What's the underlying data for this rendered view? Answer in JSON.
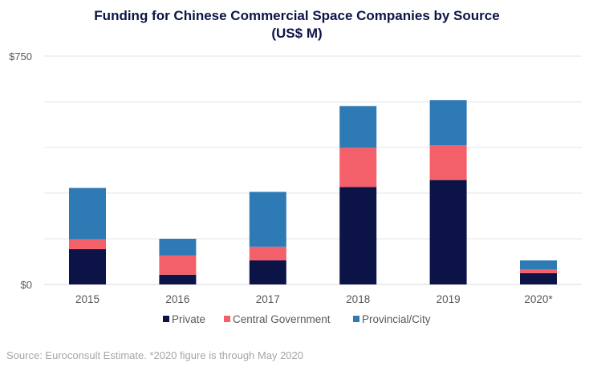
{
  "chart_data": {
    "type": "bar",
    "stacked": true,
    "title": "Funding for Chinese Commercial Space Companies by Source",
    "subtitle": "(US$ M)",
    "categories": [
      "2015",
      "2016",
      "2017",
      "2018",
      "2019",
      "2020*"
    ],
    "series": [
      {
        "name": "Private",
        "color": "#0c1447",
        "values": [
          116,
          32,
          79,
          320,
          343,
          37
        ]
      },
      {
        "name": "Central Government",
        "color": "#f4606a",
        "values": [
          32,
          63,
          45,
          129,
          114,
          13
        ]
      },
      {
        "name": "Provincial/City",
        "color": "#2e7ab5",
        "values": [
          169,
          55,
          180,
          137,
          148,
          29
        ]
      }
    ],
    "ylim": [
      0,
      750
    ],
    "yticks": [
      0,
      150,
      300,
      450,
      600,
      750
    ],
    "ytick_labels": [
      "$0",
      "",
      "",
      "",
      "",
      "$750"
    ],
    "grid": true,
    "legend": "bottom",
    "source": "Source: Euroconsult  Estimate. *2020 figure is through May 2020"
  }
}
